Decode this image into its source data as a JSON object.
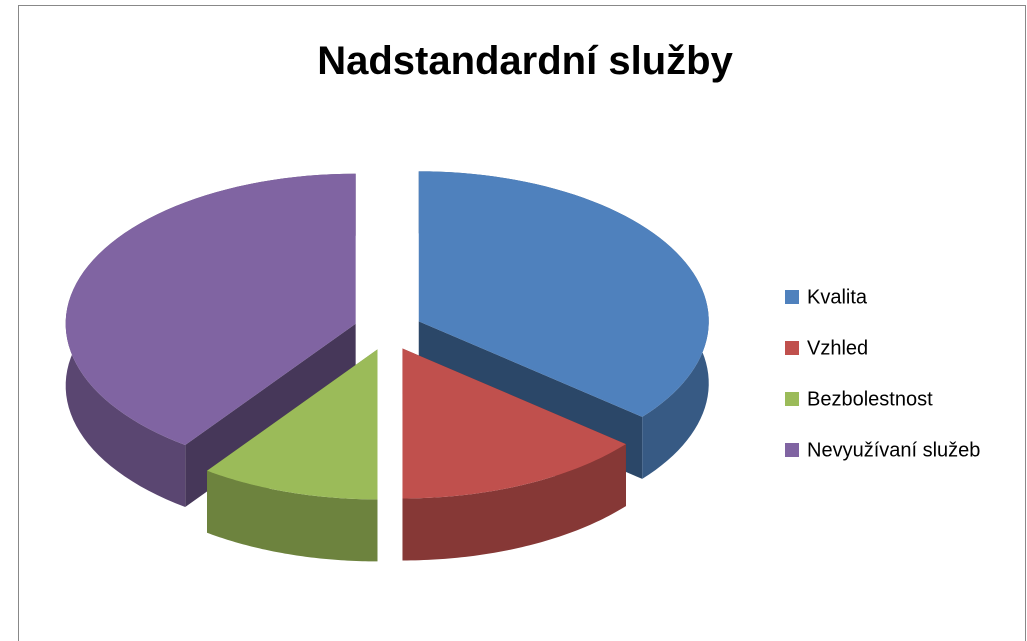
{
  "chart_data": {
    "type": "pie3d",
    "title": "Nadstandardní služby",
    "categories": [
      "Kvalita",
      "Vzhled",
      "Bezbolestnost",
      "Nevyužívaní služeb"
    ],
    "values": [
      36,
      14,
      10,
      40
    ],
    "colors": [
      "#4f81bd",
      "#c0504d",
      "#9bbb59",
      "#8064a2"
    ],
    "legend": "right"
  }
}
